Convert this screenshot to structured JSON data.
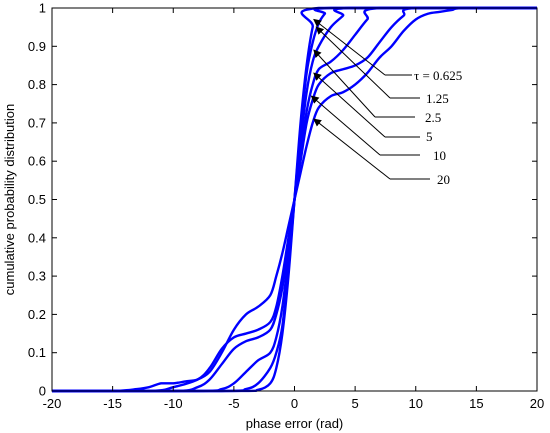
{
  "chart_data": {
    "type": "line",
    "xlabel": "phase error (rad)",
    "ylabel": "cumulative probability distribution",
    "xlim": [
      -20,
      20
    ],
    "ylim": [
      0,
      1
    ],
    "xticks": [
      -20,
      -15,
      -10,
      -5,
      0,
      5,
      10,
      15,
      20
    ],
    "yticks": [
      0,
      0.1,
      0.2,
      0.3,
      0.4,
      0.5,
      0.6,
      0.7,
      0.8,
      0.9,
      1
    ],
    "grid": false,
    "line_color": "#0000ff",
    "series": [
      {
        "name": "τ = 0.625",
        "x": [
          -20,
          -5,
          -3,
          -2,
          -1.5,
          -1,
          -0.5,
          0,
          0.5,
          1,
          1.5,
          2,
          20
        ],
        "y": [
          0,
          0,
          0.003,
          0.02,
          0.06,
          0.15,
          0.3,
          0.5,
          0.7,
          0.85,
          0.95,
          1.0,
          1.0
        ]
      },
      {
        "name": "1.25",
        "x": [
          -20,
          -6,
          -4,
          -3,
          -2,
          -1.5,
          -1,
          -0.5,
          0,
          0.5,
          1,
          1.5,
          2,
          2.5,
          3,
          20
        ],
        "y": [
          0,
          0,
          0.005,
          0.02,
          0.06,
          0.1,
          0.17,
          0.32,
          0.5,
          0.68,
          0.83,
          0.91,
          0.96,
          0.985,
          1.0,
          1.0
        ]
      },
      {
        "name": "2.5",
        "x": [
          -20,
          -8,
          -6,
          -5,
          -4,
          -3,
          -2,
          -1.5,
          -1,
          -0.5,
          0,
          0.5,
          1,
          1.5,
          2,
          3,
          4,
          4.5,
          20
        ],
        "y": [
          0,
          0,
          0.005,
          0.02,
          0.05,
          0.08,
          0.1,
          0.14,
          0.22,
          0.35,
          0.5,
          0.65,
          0.78,
          0.86,
          0.9,
          0.95,
          0.98,
          1.0,
          1.0
        ]
      },
      {
        "name": "5",
        "x": [
          -20,
          -10,
          -8,
          -7,
          -6,
          -5,
          -4,
          -3,
          -2,
          -1.5,
          -1,
          -0.5,
          0,
          0.5,
          1,
          1.5,
          2,
          3,
          4,
          5,
          6,
          7,
          20
        ],
        "y": [
          0,
          0,
          0.01,
          0.03,
          0.07,
          0.11,
          0.13,
          0.14,
          0.16,
          0.2,
          0.27,
          0.38,
          0.5,
          0.62,
          0.73,
          0.8,
          0.84,
          0.86,
          0.89,
          0.93,
          0.97,
          1.0,
          1.0
        ]
      },
      {
        "name": "10",
        "x": [
          -20,
          -12,
          -10,
          -8,
          -7,
          -6,
          -5,
          -4,
          -3,
          -2,
          -1.5,
          -1,
          -0.5,
          0,
          0.5,
          1,
          1.5,
          2,
          3,
          4,
          5,
          6,
          7,
          8,
          9,
          10,
          20
        ],
        "y": [
          0,
          0,
          0.01,
          0.03,
          0.06,
          0.11,
          0.14,
          0.15,
          0.16,
          0.18,
          0.22,
          0.3,
          0.4,
          0.5,
          0.6,
          0.7,
          0.76,
          0.8,
          0.83,
          0.84,
          0.85,
          0.87,
          0.91,
          0.95,
          0.98,
          1.0,
          1.0
        ]
      },
      {
        "name": "20",
        "x": [
          -20,
          -15,
          -13,
          -12,
          -11,
          -10,
          -9,
          -8,
          -7,
          -6,
          -5,
          -4,
          -3,
          -2,
          -1.5,
          -1,
          -0.5,
          0,
          0.5,
          1,
          1.5,
          2,
          3,
          4,
          5,
          6,
          7,
          8,
          9,
          10,
          11,
          12,
          13,
          14,
          20
        ],
        "y": [
          0,
          0,
          0.005,
          0.01,
          0.02,
          0.02,
          0.025,
          0.03,
          0.05,
          0.1,
          0.16,
          0.2,
          0.22,
          0.25,
          0.3,
          0.36,
          0.43,
          0.5,
          0.57,
          0.64,
          0.7,
          0.74,
          0.77,
          0.78,
          0.8,
          0.83,
          0.87,
          0.9,
          0.94,
          0.97,
          0.985,
          0.99,
          0.995,
          1.0,
          1.0
        ]
      }
    ],
    "annotations": [
      {
        "text": "τ = 0.625",
        "series": "τ = 0.625",
        "point": [
          1.6,
          0.97
        ]
      },
      {
        "text": "1.25",
        "series": "1.25",
        "point": [
          1.8,
          0.95
        ]
      },
      {
        "text": "2.5",
        "series": "2.5",
        "point": [
          1.6,
          0.89
        ]
      },
      {
        "text": "5",
        "series": "5",
        "point": [
          1.6,
          0.83
        ]
      },
      {
        "text": "10",
        "series": "10",
        "point": [
          1.4,
          0.77
        ]
      },
      {
        "text": "20",
        "series": "20",
        "point": [
          1.6,
          0.71
        ]
      }
    ]
  }
}
